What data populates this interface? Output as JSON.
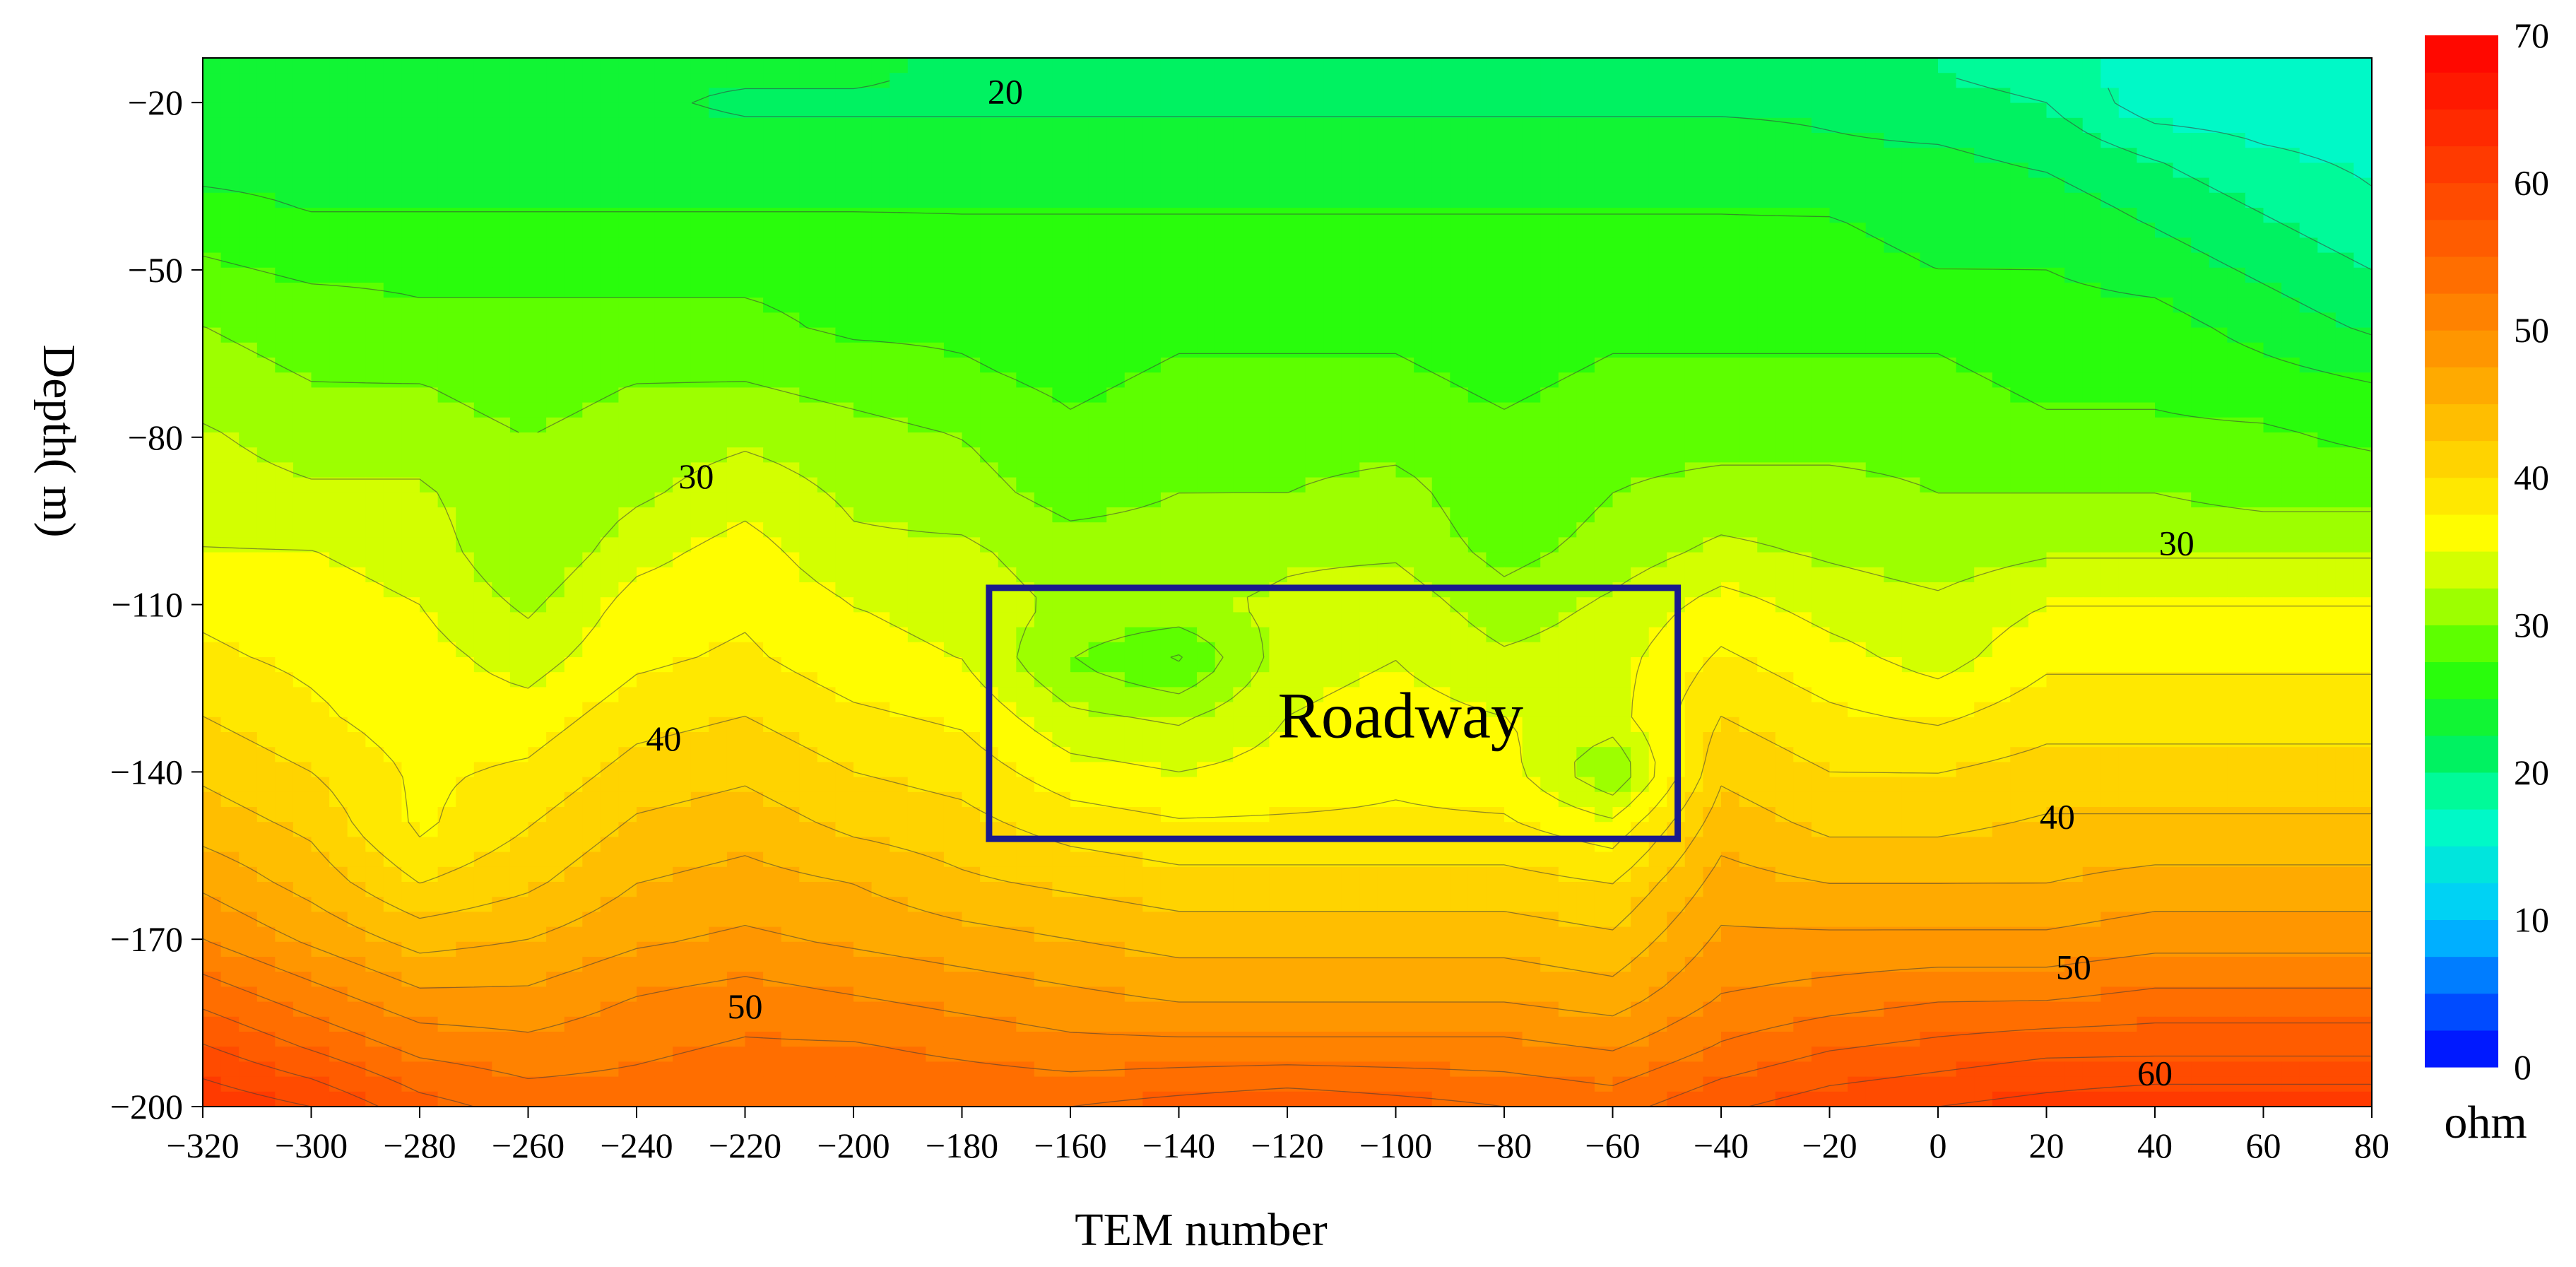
{
  "chart_data": {
    "type": "heatmap",
    "title": "",
    "xlabel": "TEM  number",
    "ylabel": "Depth( m)",
    "x_ticks": [
      -320,
      -300,
      -280,
      -260,
      -240,
      -220,
      -200,
      -180,
      -160,
      -140,
      -120,
      -100,
      -80,
      -60,
      -40,
      -20,
      0,
      20,
      40,
      60,
      80
    ],
    "y_ticks": [
      -20,
      -50,
      -80,
      -110,
      -140,
      -170,
      -200
    ],
    "xlim": [
      -320,
      80
    ],
    "ylim": [
      -200,
      -12
    ],
    "grid": false,
    "colorbar": {
      "min": 0,
      "max": 70,
      "step": 2.5,
      "ticks": [
        0,
        10,
        20,
        30,
        40,
        50,
        60,
        70
      ],
      "unit": "ohm",
      "position": "right",
      "stops": [
        {
          "v": 0,
          "c": "#0000ff"
        },
        {
          "v": 10,
          "c": "#00c8ff"
        },
        {
          "v": 17,
          "c": "#00ffc0"
        },
        {
          "v": 22,
          "c": "#00f050"
        },
        {
          "v": 27,
          "c": "#30ff00"
        },
        {
          "v": 32,
          "c": "#b0ff00"
        },
        {
          "v": 36,
          "c": "#ffff00"
        },
        {
          "v": 45,
          "c": "#ffb400"
        },
        {
          "v": 55,
          "c": "#ff6400"
        },
        {
          "v": 70,
          "c": "#ff0000"
        }
      ]
    },
    "grid_x": [
      -320,
      -300,
      -280,
      -260,
      -240,
      -220,
      -200,
      -180,
      -160,
      -140,
      -120,
      -100,
      -80,
      -60,
      -40,
      -20,
      0,
      20,
      40,
      60,
      80
    ],
    "grid_y": [
      -15,
      -20,
      -30,
      -40,
      -50,
      -60,
      -70,
      -80,
      -90,
      -100,
      -110,
      -120,
      -130,
      -140,
      -150,
      -160,
      -170,
      -180,
      -190,
      -200
    ],
    "values": [
      [
        23,
        23,
        23,
        23,
        23,
        23,
        23,
        22,
        22,
        22,
        22,
        22,
        22,
        22,
        22,
        21,
        20,
        19,
        16,
        16,
        16
      ],
      [
        23,
        23,
        23,
        23,
        23,
        22,
        22,
        22,
        22,
        22,
        22,
        22,
        22,
        22,
        22,
        22,
        21,
        20,
        16,
        16,
        16
      ],
      [
        24,
        24,
        24,
        24,
        24,
        24,
        24,
        24,
        24,
        24,
        24,
        24,
        24,
        24,
        24,
        23,
        23,
        22,
        20,
        18,
        17
      ],
      [
        26,
        25,
        25,
        25,
        25,
        25,
        25,
        25,
        25,
        25,
        25,
        25,
        25,
        25,
        25,
        25,
        24,
        24,
        22,
        20,
        18
      ],
      [
        28,
        27,
        27,
        27,
        27,
        27,
        27,
        26,
        26,
        26,
        26,
        26,
        26,
        26,
        26,
        26,
        25,
        25,
        24,
        22,
        20
      ],
      [
        30,
        29,
        28,
        28,
        28,
        28,
        27,
        27,
        26,
        27,
        27,
        27,
        26,
        27,
        27,
        27,
        27,
        26,
        26,
        24,
        22
      ],
      [
        31,
        30,
        30,
        29,
        30,
        30,
        29,
        28,
        27,
        28,
        28,
        28,
        27,
        28,
        28,
        28,
        28,
        27,
        27,
        26,
        25
      ],
      [
        33,
        31,
        31,
        30,
        31,
        32,
        31,
        30,
        28,
        29,
        29,
        29,
        28,
        29,
        29,
        29,
        29,
        28,
        28,
        28,
        27
      ],
      [
        34,
        33,
        33,
        30,
        32,
        34,
        32,
        31,
        29,
        30,
        30,
        31,
        28,
        30,
        31,
        31,
        30,
        30,
        30,
        29,
        29
      ],
      [
        35,
        35,
        34,
        30,
        34,
        36,
        33,
        33,
        31,
        31,
        32,
        32,
        29,
        31,
        33,
        32,
        31,
        32,
        32,
        32,
        32
      ],
      [
        37,
        36,
        35,
        32,
        36,
        37,
        35,
        34,
        32,
        32,
        33,
        34,
        31,
        33,
        36,
        34,
        33,
        35,
        35,
        35,
        35
      ],
      [
        38,
        37,
        36,
        34,
        37,
        38,
        36,
        35,
        30,
        27,
        34,
        35,
        33,
        34,
        38,
        36,
        34,
        37,
        37,
        37,
        37
      ],
      [
        40,
        38,
        36,
        36,
        39,
        40,
        38,
        37,
        33,
        32,
        35,
        36,
        35,
        34,
        40,
        38,
        37,
        39,
        39,
        39,
        39
      ],
      [
        42,
        40,
        37,
        38,
        41,
        42,
        40,
        39,
        36,
        35,
        36,
        37,
        36,
        30,
        42,
        40,
        40,
        41,
        41,
        41,
        41
      ],
      [
        44,
        42,
        37,
        40,
        43,
        44,
        42,
        41,
        39,
        38,
        38,
        38,
        38,
        36,
        44,
        42,
        42,
        43,
        43,
        43,
        43
      ],
      [
        47,
        44,
        40,
        42,
        45,
        46,
        45,
        43,
        42,
        41,
        41,
        41,
        41,
        40,
        46,
        45,
        45,
        45,
        46,
        46,
        46
      ],
      [
        50,
        47,
        44,
        45,
        47,
        48,
        47,
        46,
        45,
        44,
        44,
        44,
        44,
        43,
        48,
        48,
        48,
        48,
        49,
        49,
        49
      ],
      [
        54,
        51,
        48,
        48,
        50,
        51,
        50,
        49,
        48,
        47,
        47,
        47,
        47,
        46,
        50,
        51,
        52,
        52,
        53,
        53,
        53
      ],
      [
        58,
        55,
        52,
        51,
        52,
        53,
        53,
        52,
        51,
        51,
        51,
        51,
        51,
        50,
        53,
        55,
        56,
        57,
        57,
        57,
        57
      ],
      [
        62,
        60,
        56,
        54,
        54,
        55,
        55,
        55,
        55,
        56,
        57,
        56,
        55,
        54,
        57,
        59,
        60,
        61,
        62,
        62,
        62
      ]
    ],
    "contour_labels": [
      {
        "text": "20",
        "x": -172,
        "y": -18
      },
      {
        "text": "30",
        "x": -229,
        "y": -87
      },
      {
        "text": "30",
        "x": 44,
        "y": -99
      },
      {
        "text": "40",
        "x": -235,
        "y": -134
      },
      {
        "text": "40",
        "x": 22,
        "y": -148
      },
      {
        "text": "50",
        "x": -220,
        "y": -182
      },
      {
        "text": "50",
        "x": 25,
        "y": -175
      },
      {
        "text": "60",
        "x": 40,
        "y": -194
      }
    ],
    "annotations": [
      {
        "type": "rect",
        "label": "Roadway",
        "x0": -175,
        "x1": -48,
        "y0": -107,
        "y1": -152,
        "color": "#1a1a8c"
      }
    ]
  }
}
